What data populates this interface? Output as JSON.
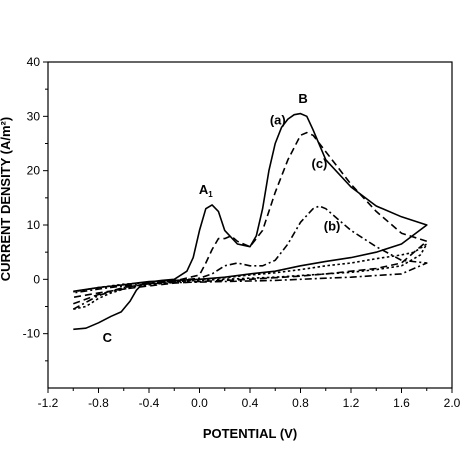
{
  "chart_data": {
    "type": "line",
    "title": "",
    "xlabel": "POTENTIAL (V)",
    "ylabel": "CURRENT DENSITY (A/m²)",
    "xlim": [
      -1.2,
      2.0
    ],
    "ylim": [
      -20,
      40
    ],
    "x_ticks": [
      "-1.2",
      "-0.8",
      "-0.4",
      "0.0",
      "0.4",
      "0.8",
      "1.2",
      "1.6",
      "2.0"
    ],
    "y_ticks": [
      "-10",
      "0",
      "10",
      "20",
      "30",
      "40"
    ],
    "grid": false,
    "annotations": [
      {
        "text": "B",
        "x": 0.82,
        "y": 32.5
      },
      {
        "text": "(a)",
        "x": 0.62,
        "y": 28.5
      },
      {
        "text": "(c)",
        "x": 0.95,
        "y": 20.5
      },
      {
        "text": "(b)",
        "x": 1.05,
        "y": 9.0
      },
      {
        "text": "A",
        "sub": "1",
        "x": 0.05,
        "y": 15.7
      },
      {
        "text": "C",
        "x": -0.73,
        "y": -11.5
      }
    ],
    "series": [
      {
        "name": "",
        "style": "solid",
        "x": [
          -1.0,
          -0.9,
          -0.8,
          -0.7,
          -0.62,
          -0.55,
          -0.5,
          -0.45,
          -0.4,
          -0.3,
          -0.2,
          -0.1,
          -0.05,
          0.0,
          0.05,
          0.1,
          0.15,
          0.2,
          0.3,
          0.4,
          0.45,
          0.5,
          0.55,
          0.6,
          0.65,
          0.7,
          0.75,
          0.8,
          0.85,
          0.9,
          1.0,
          1.2,
          1.4,
          1.6,
          1.8,
          1.6,
          1.4,
          1.2,
          1.0,
          0.8,
          0.6,
          0.4,
          0.2,
          0.0,
          -0.2,
          -0.4,
          -0.5,
          -0.6,
          -0.8,
          -1.0
        ],
        "y": [
          -9.2,
          -9.0,
          -8.0,
          -6.8,
          -6.0,
          -4.0,
          -2.0,
          -0.8,
          -0.5,
          -0.2,
          0.0,
          1.5,
          4.0,
          9.0,
          13.0,
          13.7,
          12.5,
          9.0,
          6.5,
          6.0,
          8.0,
          13.0,
          20.0,
          25.0,
          28.0,
          29.5,
          30.3,
          30.5,
          30.0,
          27.5,
          22.0,
          17.0,
          13.5,
          11.5,
          10.0,
          6.5,
          5.0,
          4.0,
          3.3,
          2.5,
          1.5,
          1.0,
          0.4,
          0.0,
          -0.2,
          -0.4,
          -0.7,
          -1.0,
          -1.5,
          -2.2
        ]
      },
      {
        "name": "",
        "style": "dashed",
        "x": [
          -1.0,
          -0.8,
          -0.6,
          -0.4,
          -0.2,
          0.0,
          0.05,
          0.1,
          0.15,
          0.2,
          0.25,
          0.3,
          0.4,
          0.5,
          0.6,
          0.7,
          0.8,
          0.85,
          0.9,
          1.0,
          1.2,
          1.4,
          1.6,
          1.8,
          1.6,
          1.4,
          1.2,
          1.0,
          0.8,
          0.6,
          0.4,
          0.2,
          0.0,
          -0.2,
          -0.4,
          -0.6,
          -0.8,
          -1.0
        ],
        "y": [
          -4.5,
          -2.8,
          -1.5,
          -0.8,
          -0.3,
          0.8,
          3.0,
          5.5,
          7.5,
          7.5,
          8.0,
          7.0,
          6.0,
          9.0,
          16.0,
          22.0,
          26.5,
          27.0,
          26.5,
          23.5,
          17.5,
          12.5,
          8.5,
          7.0,
          3.0,
          2.0,
          1.5,
          1.0,
          0.6,
          0.3,
          0.0,
          -0.2,
          -0.4,
          -0.7,
          -1.2,
          -1.8,
          -2.5,
          -3.3
        ]
      },
      {
        "name": "",
        "style": "dashdot",
        "x": [
          -1.0,
          -0.8,
          -0.6,
          -0.4,
          -0.2,
          0.0,
          0.1,
          0.2,
          0.3,
          0.4,
          0.5,
          0.6,
          0.7,
          0.8,
          0.9,
          0.95,
          1.0,
          1.1,
          1.2,
          1.4,
          1.6,
          1.8,
          1.6,
          1.4,
          1.2,
          1.0,
          0.8,
          0.6,
          0.4,
          0.2,
          0.0,
          -0.2,
          -0.4,
          -0.6,
          -0.8,
          -1.0
        ],
        "y": [
          -5.5,
          -3.0,
          -1.5,
          -0.8,
          -0.3,
          0.2,
          1.0,
          2.5,
          3.0,
          2.5,
          2.5,
          3.5,
          6.5,
          10.5,
          13.0,
          13.5,
          13.0,
          11.0,
          9.0,
          6.0,
          3.5,
          3.0,
          1.0,
          0.7,
          0.4,
          0.2,
          0.0,
          -0.2,
          -0.3,
          -0.4,
          -0.5,
          -0.6,
          -0.8,
          -1.2,
          -1.8,
          -2.5
        ]
      },
      {
        "name": "",
        "style": "dotted",
        "x": [
          -1.0,
          -0.9,
          -0.8,
          -0.7,
          -0.6,
          -0.5,
          -0.4,
          -0.2,
          0.0,
          0.2,
          0.4,
          0.6,
          0.8,
          1.0,
          1.2,
          1.4,
          1.6,
          1.7,
          1.8,
          1.75,
          1.6,
          1.4,
          1.2,
          1.0,
          0.8,
          0.6,
          0.4,
          0.2,
          0.0,
          -0.2,
          -0.4,
          -0.6,
          -0.8,
          -1.0
        ],
        "y": [
          -5.5,
          -5.0,
          -3.5,
          -2.5,
          -1.8,
          -1.3,
          -1.0,
          -0.5,
          0.0,
          0.3,
          0.8,
          1.2,
          1.8,
          2.5,
          3.0,
          3.8,
          4.5,
          5.0,
          6.5,
          4.5,
          2.5,
          1.8,
          1.3,
          1.0,
          0.7,
          0.4,
          0.2,
          0.0,
          -0.2,
          -0.4,
          -0.6,
          -0.9,
          -1.5,
          -2.3
        ]
      }
    ]
  }
}
